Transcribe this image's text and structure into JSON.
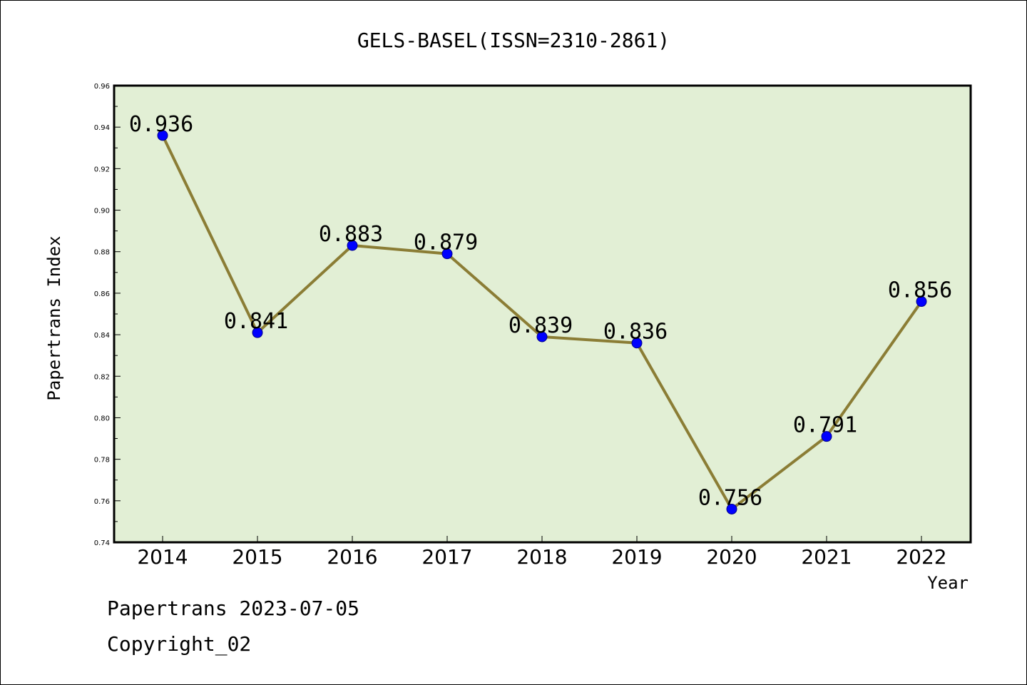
{
  "chart_data": {
    "type": "line",
    "title": "GELS-BASEL(ISSN=2310-2861)",
    "xlabel": "Year",
    "ylabel": "Papertrans Index",
    "categories": [
      "2014",
      "2015",
      "2016",
      "2017",
      "2018",
      "2019",
      "2020",
      "2021",
      "2022"
    ],
    "series": [
      {
        "values": [
          0.936,
          0.841,
          0.883,
          0.879,
          0.839,
          0.836,
          0.756,
          0.791,
          0.856
        ],
        "labels": [
          "0.936",
          "0.841",
          "0.883",
          "0.879",
          "0.839",
          "0.836",
          "0.756",
          "0.791",
          "0.856"
        ]
      }
    ],
    "ylim": [
      0.74,
      0.96
    ],
    "yticks": [
      "0.74",
      "0.76",
      "0.78",
      "0.80",
      "0.82",
      "0.84",
      "0.86",
      "0.88",
      "0.90",
      "0.92",
      "0.94",
      "0.96"
    ],
    "grid": false,
    "colors": {
      "plot_background": "#e2efd5",
      "line": "#8b7d35",
      "marker": "#0000ff",
      "axes": "#000000"
    }
  },
  "footer": {
    "line1": "Papertrans 2023-07-05",
    "line2": "Copyright_02"
  }
}
